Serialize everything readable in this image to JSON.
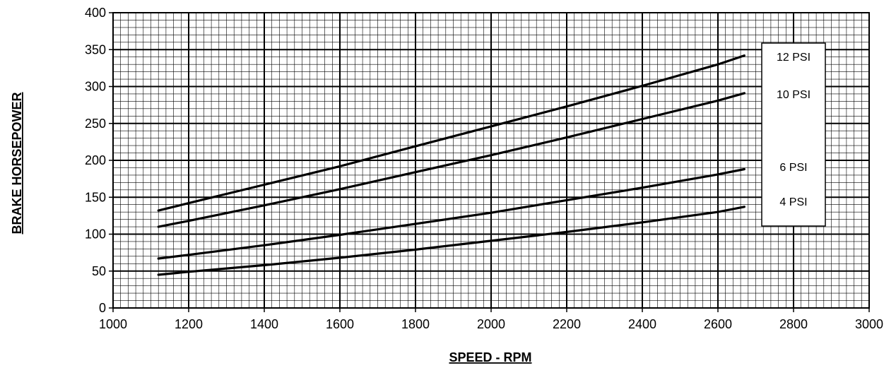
{
  "chart_data": {
    "type": "line",
    "xlabel": "SPEED - RPM",
    "ylabel": "BRAKE HORSEPOWER",
    "xlim": [
      1000,
      3000
    ],
    "ylim": [
      0,
      400
    ],
    "x_ticks": [
      1000,
      1200,
      1400,
      1600,
      1800,
      2000,
      2200,
      2400,
      2600,
      2800,
      3000
    ],
    "y_ticks": [
      0,
      50,
      100,
      150,
      200,
      250,
      300,
      350,
      400
    ],
    "grid": true,
    "legend_position": "right",
    "x": [
      1120,
      1200,
      1400,
      1600,
      1800,
      2000,
      2200,
      2400,
      2600,
      2670
    ],
    "series": [
      {
        "name": "12 PSI",
        "values": [
          132,
          142,
          167,
          192,
          219,
          246,
          273,
          301,
          330,
          342
        ]
      },
      {
        "name": "10 PSI",
        "values": [
          110,
          118,
          139,
          161,
          184,
          207,
          231,
          256,
          281,
          291
        ]
      },
      {
        "name": "6 PSI",
        "values": [
          67,
          72,
          85,
          99,
          114,
          129,
          146,
          163,
          181,
          188
        ]
      },
      {
        "name": "4 PSI",
        "values": [
          45,
          49,
          58,
          68,
          79,
          91,
          103,
          116,
          130,
          137
        ]
      }
    ]
  }
}
